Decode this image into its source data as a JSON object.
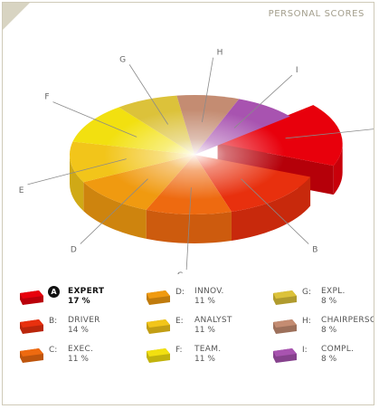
{
  "header": {
    "title": "PERSONAL SCORES"
  },
  "chart_data": {
    "type": "pie",
    "slices": [
      {
        "id": "A",
        "name": "EXPERT",
        "value": 17,
        "pct_label": "17 %",
        "color": "#e8000c",
        "exploded": true
      },
      {
        "id": "B",
        "name": "DRIVER",
        "value": 14,
        "pct_label": "14 %",
        "color": "#e8300e",
        "exploded": false
      },
      {
        "id": "C",
        "name": "EXEC.",
        "value": 11,
        "pct_label": "11 %",
        "color": "#ee6a10",
        "exploded": false
      },
      {
        "id": "D",
        "name": "INNOV.",
        "value": 11,
        "pct_label": "11 %",
        "color": "#f09a10",
        "exploded": false
      },
      {
        "id": "E",
        "name": "ANALYST",
        "value": 11,
        "pct_label": "11 %",
        "color": "#f2c51a",
        "exploded": false
      },
      {
        "id": "F",
        "name": "TEAM.",
        "value": 11,
        "pct_label": "11 %",
        "color": "#f2e010",
        "exploded": false
      },
      {
        "id": "G",
        "name": "EXPL.",
        "value": 8,
        "pct_label": "8 %",
        "color": "#dcc23a",
        "exploded": false
      },
      {
        "id": "H",
        "name": "CHAIRPERSON",
        "value": 8,
        "pct_label": "8 %",
        "color": "#c48c72",
        "exploded": false
      },
      {
        "id": "I",
        "name": "COMPL.",
        "value": 8,
        "pct_label": "8 %",
        "color": "#a853b0",
        "exploded": false
      }
    ],
    "legend_position": "bottom"
  },
  "legend": {
    "selected": "A"
  }
}
